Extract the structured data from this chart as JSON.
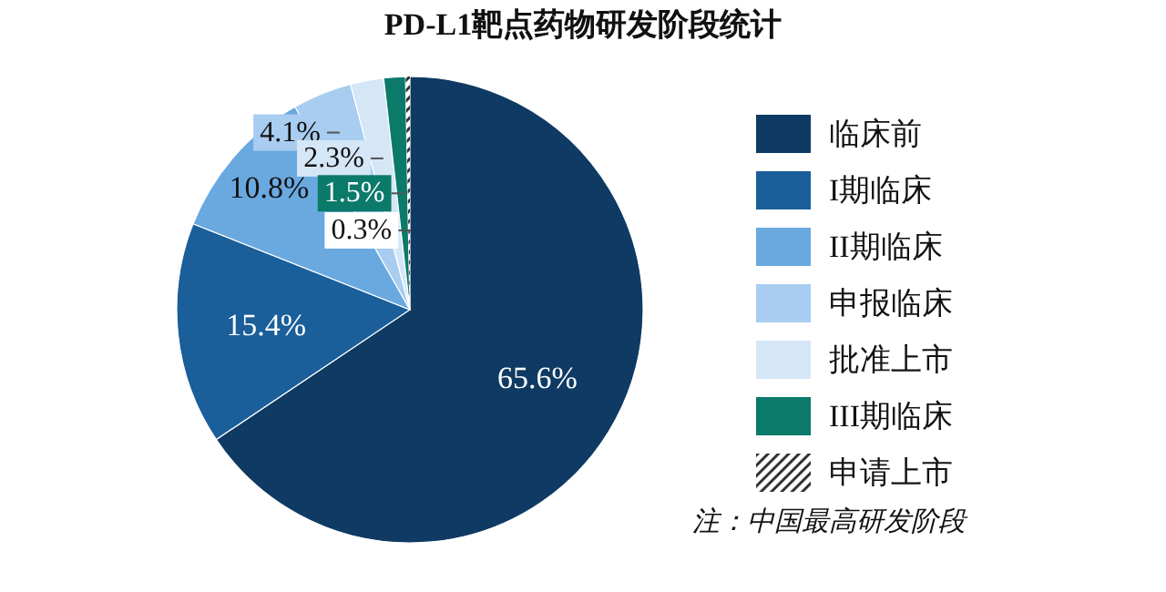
{
  "chart_data": {
    "type": "pie",
    "title": "PD-L1靶点药物研发阶段统计",
    "categories": [
      "临床前",
      "I期临床",
      "II期临床",
      "申报临床",
      "批准上市",
      "III期临床",
      "申请上市"
    ],
    "values": [
      65.6,
      15.4,
      10.8,
      4.1,
      2.3,
      1.5,
      0.3
    ],
    "value_labels": [
      "65.6%",
      "15.4%",
      "10.8%",
      "4.1%",
      "2.3%",
      "1.5%",
      "0.3%"
    ],
    "colors": [
      "#0e3a63",
      "#1a5e9a",
      "#6aa9e0",
      "#a8cdf0",
      "#d5e6f7",
      "#0b7a6b",
      "#333333"
    ],
    "legend": "right",
    "annotations": [
      "注：中国最高研发阶段"
    ]
  }
}
